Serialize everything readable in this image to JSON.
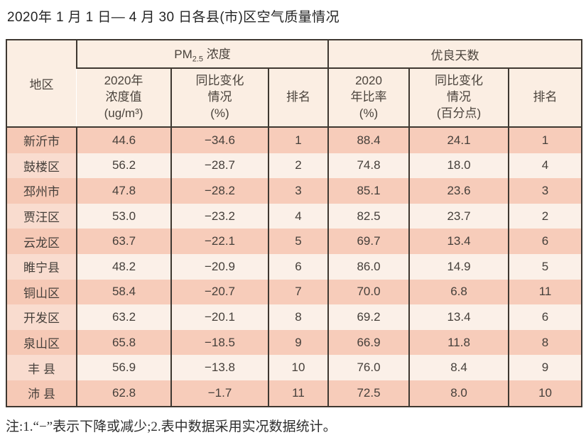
{
  "title": "2020年 1 月 1 日— 4 月 30 日各县(市)区空气质量情况",
  "footnote": "注:1.“−”表示下降或减少;2.表中数据采用实况数据统计。",
  "colors": {
    "stripe_salmon": "#f7ccba",
    "stripe_cream": "#fbf0e8",
    "region_even_pink": "#f9dccf",
    "header_cream": "#fbeee3",
    "border_dark": "#3e3831",
    "page_background": "#ffffff"
  },
  "chart_data": {
    "type": "table",
    "title": "2020年 1 月 1 日— 4 月 30 日各县(市)区空气质量情况",
    "corner_header": "地区",
    "group_pm25": {
      "prefix": "PM",
      "sub": "2.5",
      "suffix": " 浓度"
    },
    "group_days": "优良天数",
    "subheaders": {
      "pm_value": [
        "2020年",
        "浓度值",
        "(ug/m³)"
      ],
      "pm_change": [
        "同比变化",
        "情况",
        "(%)"
      ],
      "pm_rank": [
        "排名"
      ],
      "days_rate": [
        "2020",
        "年比率",
        "(%)"
      ],
      "days_change": [
        "同比变化",
        "情况",
        "(百分点)"
      ],
      "days_rank": [
        "排名"
      ]
    },
    "rows": [
      {
        "region": "新沂市",
        "values": [
          "44.6",
          "−34.6",
          "1",
          "88.4",
          "24.1",
          "1"
        ]
      },
      {
        "region": "鼓楼区",
        "values": [
          "56.2",
          "−28.7",
          "2",
          "74.8",
          "18.0",
          "4"
        ]
      },
      {
        "region": "邳州市",
        "values": [
          "47.8",
          "−28.2",
          "3",
          "85.1",
          "23.6",
          "3"
        ]
      },
      {
        "region": "贾汪区",
        "values": [
          "53.0",
          "−23.2",
          "4",
          "82.5",
          "23.7",
          "2"
        ]
      },
      {
        "region": "云龙区",
        "values": [
          "63.7",
          "−22.1",
          "5",
          "69.7",
          "13.4",
          "6"
        ]
      },
      {
        "region": "睢宁县",
        "values": [
          "48.2",
          "−20.9",
          "6",
          "86.0",
          "14.9",
          "5"
        ]
      },
      {
        "region": "铜山区",
        "values": [
          "58.4",
          "−20.7",
          "7",
          "70.0",
          "6.8",
          "11"
        ]
      },
      {
        "region": "开发区",
        "values": [
          "63.2",
          "−20.1",
          "8",
          "69.2",
          "13.4",
          "6"
        ]
      },
      {
        "region": "泉山区",
        "values": [
          "65.8",
          "−18.5",
          "9",
          "66.9",
          "11.8",
          "8"
        ]
      },
      {
        "region": "丰 县",
        "values": [
          "56.9",
          "−13.8",
          "10",
          "76.0",
          "8.4",
          "9"
        ]
      },
      {
        "region": "沛 县",
        "values": [
          "62.8",
          "−1.7",
          "11",
          "72.5",
          "8.0",
          "10"
        ]
      }
    ]
  }
}
